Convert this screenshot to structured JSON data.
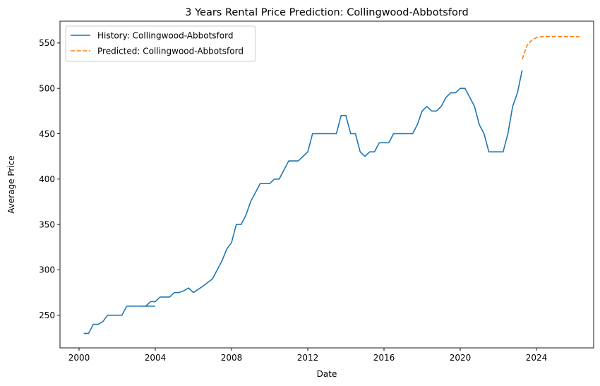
{
  "chart_data": {
    "type": "line",
    "title": "3 Years Rental Price Prediction: Collingwood-Abbotsford",
    "xlabel": "Date",
    "ylabel": "Average Price",
    "xlim": [
      1999.0,
      2027.0
    ],
    "ylim": [
      214,
      574
    ],
    "x_ticks": [
      2000,
      2004,
      2008,
      2012,
      2016,
      2020,
      2024
    ],
    "y_ticks": [
      250,
      300,
      350,
      400,
      450,
      500,
      550
    ],
    "grid": false,
    "legend_position": "top-left",
    "series": [
      {
        "name": "History: Collingwood-Abbotsford",
        "color": "#1f77b4",
        "style": "solid",
        "points": [
          [
            2000.25,
            230
          ],
          [
            2000.5,
            230
          ],
          [
            2000.75,
            240
          ],
          [
            2001.0,
            240
          ],
          [
            2001.25,
            243
          ],
          [
            2001.5,
            250
          ],
          [
            2001.75,
            250
          ],
          [
            2002.0,
            250
          ],
          [
            2002.25,
            250
          ],
          [
            2002.5,
            260
          ],
          [
            2002.75,
            260
          ],
          [
            2003.0,
            260
          ],
          [
            2003.25,
            260
          ],
          [
            2003.5,
            260
          ],
          [
            2003.75,
            265
          ],
          [
            2004.0,
            265
          ],
          [
            2004.25,
            270
          ],
          [
            2004.5,
            270
          ],
          [
            2004.75,
            270
          ],
          [
            2005.0,
            275
          ],
          [
            2005.25,
            275
          ],
          [
            2005.5,
            277
          ],
          [
            2005.75,
            280
          ],
          [
            2006.0,
            275
          ],
          [
            2006.5,
            282
          ],
          [
            2007.0,
            290
          ],
          [
            2007.25,
            300
          ],
          [
            2007.5,
            310
          ],
          [
            2007.75,
            323
          ],
          [
            2008.0,
            330
          ],
          [
            2008.25,
            350
          ],
          [
            2008.5,
            350
          ],
          [
            2008.75,
            360
          ],
          [
            2009.0,
            375
          ],
          [
            2009.25,
            385
          ],
          [
            2009.5,
            395
          ],
          [
            2009.75,
            395
          ],
          [
            2010.0,
            395
          ],
          [
            2010.25,
            400
          ],
          [
            2010.5,
            400
          ],
          [
            2010.75,
            410
          ],
          [
            2011.0,
            420
          ],
          [
            2011.25,
            420
          ],
          [
            2011.5,
            420
          ],
          [
            2011.75,
            425
          ],
          [
            2012.0,
            430
          ],
          [
            2012.25,
            450
          ],
          [
            2012.5,
            450
          ],
          [
            2013.5,
            450
          ],
          [
            2013.75,
            470
          ],
          [
            2014.0,
            470
          ],
          [
            2014.25,
            450
          ],
          [
            2014.5,
            450
          ],
          [
            2014.75,
            430
          ],
          [
            2015.0,
            425
          ],
          [
            2015.25,
            430
          ],
          [
            2015.5,
            430
          ],
          [
            2015.75,
            440
          ],
          [
            2016.0,
            440
          ],
          [
            2016.25,
            440
          ],
          [
            2016.5,
            450
          ],
          [
            2016.75,
            450
          ],
          [
            2017.5,
            450
          ],
          [
            2017.75,
            460
          ],
          [
            2018.0,
            475
          ],
          [
            2018.25,
            480
          ],
          [
            2018.5,
            475
          ],
          [
            2018.75,
            475
          ],
          [
            2019.0,
            480
          ],
          [
            2019.25,
            490
          ],
          [
            2019.5,
            495
          ],
          [
            2019.75,
            495
          ],
          [
            2020.0,
            500
          ],
          [
            2020.25,
            500
          ],
          [
            2020.5,
            490
          ],
          [
            2020.75,
            480
          ],
          [
            2021.0,
            460
          ],
          [
            2021.25,
            450
          ],
          [
            2021.5,
            430
          ],
          [
            2021.75,
            430
          ],
          [
            2022.25,
            430
          ],
          [
            2022.5,
            450
          ],
          [
            2022.75,
            480
          ],
          [
            2023.0,
            495
          ],
          [
            2023.25,
            520
          ]
        ],
        "extra_segments": [
          [
            [
              2003.25,
              260
            ],
            [
              2003.75,
              260
            ],
            [
              2004.0,
              260
            ]
          ]
        ]
      },
      {
        "name": "Predicted: Collingwood-Abbotsford",
        "color": "#ff7f0e",
        "style": "dashed",
        "points": [
          [
            2023.25,
            532
          ],
          [
            2023.5,
            547
          ],
          [
            2023.75,
            553
          ],
          [
            2024.0,
            556
          ],
          [
            2024.25,
            557
          ],
          [
            2024.5,
            557
          ],
          [
            2025.0,
            557
          ],
          [
            2025.5,
            557
          ],
          [
            2026.0,
            557
          ],
          [
            2026.25,
            557
          ]
        ]
      }
    ]
  }
}
